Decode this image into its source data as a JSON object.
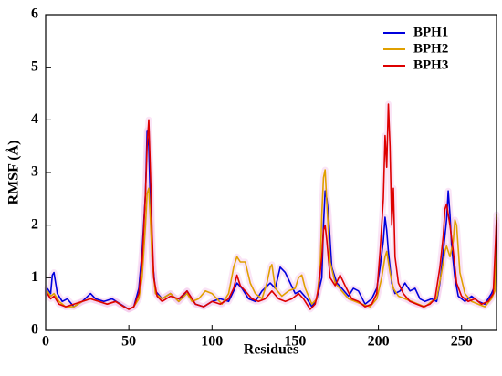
{
  "chart_data": {
    "type": "line",
    "title": "",
    "xlabel": "Residues",
    "ylabel": "RMSF (Å)",
    "xlim": [
      0,
      271
    ],
    "ylim": [
      0,
      6
    ],
    "xticks": [
      0,
      50,
      100,
      150,
      200,
      250
    ],
    "yticks": [
      0,
      1,
      2,
      3,
      4,
      5,
      6
    ],
    "grid": false,
    "legend_position": "top-right",
    "series": [
      {
        "name": "BPH1",
        "color": "#0000dd",
        "points": [
          [
            1,
            0.8
          ],
          [
            3,
            0.7
          ],
          [
            4,
            1.05
          ],
          [
            5,
            1.1
          ],
          [
            7,
            0.7
          ],
          [
            10,
            0.55
          ],
          [
            13,
            0.6
          ],
          [
            17,
            0.45
          ],
          [
            22,
            0.55
          ],
          [
            27,
            0.7
          ],
          [
            30,
            0.6
          ],
          [
            35,
            0.55
          ],
          [
            40,
            0.6
          ],
          [
            45,
            0.5
          ],
          [
            50,
            0.4
          ],
          [
            53,
            0.45
          ],
          [
            56,
            0.8
          ],
          [
            58,
            1.5
          ],
          [
            60,
            2.6
          ],
          [
            61,
            3.8
          ],
          [
            62,
            3.5
          ],
          [
            63,
            2.4
          ],
          [
            64,
            1.4
          ],
          [
            66,
            0.75
          ],
          [
            70,
            0.6
          ],
          [
            75,
            0.7
          ],
          [
            80,
            0.55
          ],
          [
            85,
            0.75
          ],
          [
            90,
            0.5
          ],
          [
            95,
            0.45
          ],
          [
            100,
            0.55
          ],
          [
            105,
            0.6
          ],
          [
            110,
            0.55
          ],
          [
            113,
            0.75
          ],
          [
            115,
            0.9
          ],
          [
            118,
            0.8
          ],
          [
            122,
            0.6
          ],
          [
            126,
            0.55
          ],
          [
            130,
            0.75
          ],
          [
            135,
            0.9
          ],
          [
            138,
            0.8
          ],
          [
            141,
            1.2
          ],
          [
            144,
            1.1
          ],
          [
            147,
            0.9
          ],
          [
            150,
            0.7
          ],
          [
            153,
            0.75
          ],
          [
            157,
            0.6
          ],
          [
            160,
            0.45
          ],
          [
            163,
            0.6
          ],
          [
            166,
            1.0
          ],
          [
            167,
            2.0
          ],
          [
            168,
            2.65
          ],
          [
            169,
            2.5
          ],
          [
            170,
            2.2
          ],
          [
            172,
            1.2
          ],
          [
            175,
            0.9
          ],
          [
            178,
            0.8
          ],
          [
            182,
            0.65
          ],
          [
            185,
            0.8
          ],
          [
            188,
            0.75
          ],
          [
            192,
            0.5
          ],
          [
            196,
            0.6
          ],
          [
            199,
            0.8
          ],
          [
            201,
            1.2
          ],
          [
            203,
            1.7
          ],
          [
            204,
            2.15
          ],
          [
            205,
            1.9
          ],
          [
            206,
            1.5
          ],
          [
            208,
            0.9
          ],
          [
            210,
            0.7
          ],
          [
            213,
            0.75
          ],
          [
            216,
            0.9
          ],
          [
            219,
            0.75
          ],
          [
            222,
            0.8
          ],
          [
            225,
            0.6
          ],
          [
            228,
            0.55
          ],
          [
            232,
            0.6
          ],
          [
            235,
            0.55
          ],
          [
            237,
            0.9
          ],
          [
            239,
            1.5
          ],
          [
            241,
            2.1
          ],
          [
            242,
            2.65
          ],
          [
            243,
            2.2
          ],
          [
            244,
            1.6
          ],
          [
            246,
            1.0
          ],
          [
            248,
            0.65
          ],
          [
            252,
            0.55
          ],
          [
            256,
            0.65
          ],
          [
            260,
            0.55
          ],
          [
            264,
            0.5
          ],
          [
            268,
            0.7
          ],
          [
            270,
            0.85
          ],
          [
            271,
            2.0
          ]
        ]
      },
      {
        "name": "BPH2",
        "color": "#e0a000",
        "points": [
          [
            1,
            0.75
          ],
          [
            3,
            0.65
          ],
          [
            5,
            0.7
          ],
          [
            8,
            0.55
          ],
          [
            12,
            0.45
          ],
          [
            17,
            0.45
          ],
          [
            22,
            0.55
          ],
          [
            27,
            0.6
          ],
          [
            32,
            0.55
          ],
          [
            37,
            0.5
          ],
          [
            42,
            0.55
          ],
          [
            47,
            0.45
          ],
          [
            50,
            0.4
          ],
          [
            53,
            0.45
          ],
          [
            56,
            0.6
          ],
          [
            58,
            1.0
          ],
          [
            60,
            2.0
          ],
          [
            61,
            2.6
          ],
          [
            62,
            2.7
          ],
          [
            63,
            2.1
          ],
          [
            64,
            1.3
          ],
          [
            66,
            0.7
          ],
          [
            70,
            0.6
          ],
          [
            75,
            0.7
          ],
          [
            80,
            0.55
          ],
          [
            85,
            0.7
          ],
          [
            88,
            0.55
          ],
          [
            92,
            0.6
          ],
          [
            96,
            0.75
          ],
          [
            100,
            0.7
          ],
          [
            103,
            0.6
          ],
          [
            106,
            0.5
          ],
          [
            110,
            0.7
          ],
          [
            113,
            1.2
          ],
          [
            115,
            1.4
          ],
          [
            117,
            1.3
          ],
          [
            120,
            1.3
          ],
          [
            123,
            0.9
          ],
          [
            126,
            0.7
          ],
          [
            130,
            0.6
          ],
          [
            133,
            0.9
          ],
          [
            135,
            1.2
          ],
          [
            136,
            1.25
          ],
          [
            138,
            0.8
          ],
          [
            142,
            0.65
          ],
          [
            146,
            0.75
          ],
          [
            150,
            0.8
          ],
          [
            152,
            1.0
          ],
          [
            154,
            1.05
          ],
          [
            156,
            0.8
          ],
          [
            160,
            0.5
          ],
          [
            163,
            0.6
          ],
          [
            165,
            1.2
          ],
          [
            166,
            2.2
          ],
          [
            167,
            2.9
          ],
          [
            168,
            3.05
          ],
          [
            169,
            2.4
          ],
          [
            171,
            1.3
          ],
          [
            174,
            0.9
          ],
          [
            178,
            0.75
          ],
          [
            182,
            0.6
          ],
          [
            186,
            0.55
          ],
          [
            190,
            0.5
          ],
          [
            195,
            0.45
          ],
          [
            199,
            0.6
          ],
          [
            202,
            1.0
          ],
          [
            204,
            1.4
          ],
          [
            205,
            1.5
          ],
          [
            207,
            1.1
          ],
          [
            209,
            0.8
          ],
          [
            212,
            0.65
          ],
          [
            216,
            0.6
          ],
          [
            220,
            0.55
          ],
          [
            224,
            0.5
          ],
          [
            228,
            0.45
          ],
          [
            232,
            0.55
          ],
          [
            235,
            0.6
          ],
          [
            238,
            1.1
          ],
          [
            240,
            1.5
          ],
          [
            241,
            1.6
          ],
          [
            243,
            1.4
          ],
          [
            245,
            1.7
          ],
          [
            246,
            2.1
          ],
          [
            247,
            2.0
          ],
          [
            249,
            1.1
          ],
          [
            252,
            0.7
          ],
          [
            256,
            0.55
          ],
          [
            260,
            0.5
          ],
          [
            264,
            0.45
          ],
          [
            268,
            0.6
          ],
          [
            270,
            0.75
          ],
          [
            271,
            2.2
          ]
        ]
      },
      {
        "name": "BPH3",
        "color": "#dd0000",
        "points": [
          [
            1,
            0.7
          ],
          [
            3,
            0.6
          ],
          [
            5,
            0.65
          ],
          [
            8,
            0.5
          ],
          [
            12,
            0.45
          ],
          [
            17,
            0.5
          ],
          [
            22,
            0.55
          ],
          [
            27,
            0.6
          ],
          [
            32,
            0.55
          ],
          [
            37,
            0.5
          ],
          [
            42,
            0.55
          ],
          [
            47,
            0.45
          ],
          [
            50,
            0.4
          ],
          [
            53,
            0.45
          ],
          [
            56,
            0.7
          ],
          [
            58,
            1.3
          ],
          [
            60,
            2.6
          ],
          [
            61,
            3.5
          ],
          [
            62,
            4.0
          ],
          [
            63,
            3.0
          ],
          [
            64,
            1.8
          ],
          [
            65,
            1.0
          ],
          [
            67,
            0.65
          ],
          [
            70,
            0.55
          ],
          [
            75,
            0.65
          ],
          [
            80,
            0.6
          ],
          [
            85,
            0.75
          ],
          [
            90,
            0.5
          ],
          [
            95,
            0.45
          ],
          [
            100,
            0.55
          ],
          [
            105,
            0.5
          ],
          [
            110,
            0.6
          ],
          [
            113,
            0.8
          ],
          [
            115,
            1.05
          ],
          [
            117,
            0.85
          ],
          [
            120,
            0.75
          ],
          [
            124,
            0.6
          ],
          [
            128,
            0.55
          ],
          [
            132,
            0.6
          ],
          [
            136,
            0.75
          ],
          [
            140,
            0.6
          ],
          [
            144,
            0.55
          ],
          [
            148,
            0.6
          ],
          [
            152,
            0.7
          ],
          [
            155,
            0.6
          ],
          [
            159,
            0.4
          ],
          [
            162,
            0.5
          ],
          [
            164,
            0.8
          ],
          [
            166,
            1.4
          ],
          [
            167,
            1.9
          ],
          [
            168,
            2.0
          ],
          [
            169,
            1.7
          ],
          [
            171,
            1.0
          ],
          [
            174,
            0.85
          ],
          [
            177,
            1.05
          ],
          [
            180,
            0.85
          ],
          [
            184,
            0.6
          ],
          [
            188,
            0.55
          ],
          [
            192,
            0.45
          ],
          [
            196,
            0.5
          ],
          [
            199,
            0.7
          ],
          [
            201,
            1.5
          ],
          [
            203,
            2.5
          ],
          [
            204,
            3.7
          ],
          [
            205,
            3.1
          ],
          [
            206,
            4.3
          ],
          [
            207,
            3.5
          ],
          [
            208,
            2.0
          ],
          [
            209,
            2.7
          ],
          [
            210,
            1.4
          ],
          [
            212,
            0.9
          ],
          [
            215,
            0.7
          ],
          [
            219,
            0.55
          ],
          [
            223,
            0.5
          ],
          [
            227,
            0.45
          ],
          [
            231,
            0.5
          ],
          [
            234,
            0.6
          ],
          [
            237,
            1.2
          ],
          [
            239,
            1.8
          ],
          [
            240,
            2.3
          ],
          [
            241,
            2.4
          ],
          [
            243,
            2.0
          ],
          [
            245,
            1.5
          ],
          [
            247,
            0.9
          ],
          [
            250,
            0.65
          ],
          [
            254,
            0.55
          ],
          [
            258,
            0.6
          ],
          [
            262,
            0.5
          ],
          [
            266,
            0.55
          ],
          [
            269,
            0.7
          ],
          [
            271,
            2.1
          ]
        ]
      }
    ]
  }
}
